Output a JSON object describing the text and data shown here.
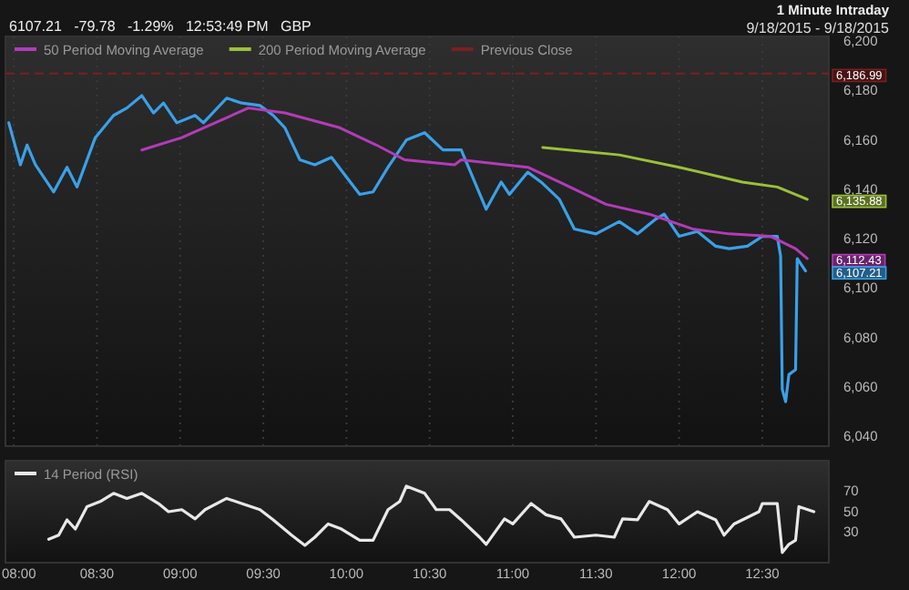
{
  "chart_data": [
    {
      "type": "line",
      "title": "1 Minute Intraday",
      "subtitle": "9/18/2015 - 9/18/2015",
      "annotations": [
        "6107.21   -79.78   -1.29%   12:53:49 PM   GBP",
        "6,186.99",
        "6,135.88",
        "6,112.43",
        "6,107.21"
      ],
      "xlim": [
        7.95,
        12.9
      ],
      "xticks": [
        8,
        8.5,
        9,
        9.5,
        10,
        10.5,
        11,
        11.5,
        12,
        12.5
      ],
      "ylim": [
        6036,
        6202
      ],
      "yticks": [
        {
          "value": 6040,
          "label": "6,040"
        },
        {
          "value": 6060,
          "label": "6,060"
        },
        {
          "value": 6080,
          "label": "6,080"
        },
        {
          "value": 6100,
          "label": "6,100"
        },
        {
          "value": 6120,
          "label": "6,120"
        },
        {
          "value": 6140,
          "label": "6,140"
        },
        {
          "value": 6160,
          "label": "6,160"
        },
        {
          "value": 6180,
          "label": "6,180"
        },
        {
          "value": 6200,
          "label": "6,200"
        }
      ],
      "tick_labels": "y",
      "grid": "x",
      "legend": "top left",
      "line_style": "solid",
      "ref_lines": [
        {
          "axis": "y",
          "value": 6186.99,
          "label": "Previous Close",
          "color": "#7a2020",
          "line_style": "dashed"
        }
      ],
      "series": [
        {
          "color": "#3aa0e8",
          "x": [
            7.97,
            8.04,
            8.08,
            8.13,
            8.24,
            8.32,
            8.38,
            8.49,
            8.6,
            8.68,
            8.77,
            8.84,
            8.9,
            8.98,
            9.09,
            9.14,
            9.28,
            9.37,
            9.48,
            9.56,
            9.63,
            9.72,
            9.81,
            9.91,
            10.0,
            10.08,
            10.16,
            10.25,
            10.36,
            10.47,
            10.58,
            10.69,
            10.74,
            10.84,
            10.93,
            10.98,
            11.09,
            11.17,
            11.28,
            11.37,
            11.5,
            11.64,
            11.75,
            11.86,
            11.91,
            12.0,
            12.11,
            12.22,
            12.3,
            12.41,
            12.5,
            12.59,
            12.61,
            12.62,
            12.64,
            12.66,
            12.7,
            12.71,
            12.76
          ],
          "values": [
            6167,
            6150,
            6158,
            6150,
            6139,
            6149,
            6141,
            6161,
            6170,
            6173,
            6178,
            6171,
            6175,
            6167,
            6170,
            6167,
            6177,
            6175,
            6174,
            6170,
            6165,
            6152,
            6150,
            6153,
            6145,
            6138,
            6139,
            6149,
            6160,
            6163,
            6156,
            6156,
            6148,
            6132,
            6143,
            6138,
            6147,
            6143,
            6136,
            6124,
            6122,
            6127,
            6122,
            6128,
            6130,
            6121,
            6123,
            6117,
            6116,
            6117,
            6121,
            6121,
            6113,
            6059,
            6054,
            6065,
            6067,
            6112,
            6107
          ]
        },
        {
          "name": "50 Period Moving Average",
          "color": "#b23cb8",
          "x": [
            8.77,
            9.01,
            9.41,
            9.63,
            9.96,
            10.18,
            10.35,
            10.65,
            10.69,
            11.09,
            11.28,
            11.56,
            11.82,
            12.08,
            12.3,
            12.55,
            12.7,
            12.77
          ],
          "values": [
            6156,
            6161,
            6173,
            6171,
            6165,
            6158,
            6152,
            6150,
            6152,
            6149,
            6143,
            6134,
            6130,
            6124,
            6122,
            6121,
            6116,
            6112
          ]
        },
        {
          "name": "200 Period Moving Average",
          "color": "#9cc03a",
          "x": [
            11.18,
            11.64,
            12.0,
            12.38,
            12.59,
            12.77
          ],
          "values": [
            6157,
            6154,
            6149,
            6143,
            6141,
            6136
          ]
        }
      ]
    },
    {
      "type": "line",
      "xlim": [
        7.95,
        12.9
      ],
      "xticks": [
        {
          "value": 8,
          "label": "08:00"
        },
        {
          "value": 8.5,
          "label": "08:30"
        },
        {
          "value": 9,
          "label": "09:00"
        },
        {
          "value": 9.5,
          "label": "09:30"
        },
        {
          "value": 10,
          "label": "10:00"
        },
        {
          "value": 10.5,
          "label": "10:30"
        },
        {
          "value": 11,
          "label": "11:00"
        },
        {
          "value": 11.5,
          "label": "11:30"
        },
        {
          "value": 12,
          "label": "12:00"
        },
        {
          "value": 12.5,
          "label": "12:30"
        }
      ],
      "ylim": [
        0,
        100
      ],
      "yticks": [
        30,
        50,
        70
      ],
      "legend": "top left",
      "line_style": "solid",
      "series": [
        {
          "name": "14 Period (RSI)",
          "color": "#e8e8e8",
          "x": [
            8.21,
            8.27,
            8.32,
            8.37,
            8.44,
            8.52,
            8.6,
            8.68,
            8.77,
            8.87,
            8.93,
            9.01,
            9.09,
            9.15,
            9.28,
            9.37,
            9.48,
            9.56,
            9.67,
            9.75,
            9.81,
            9.89,
            9.97,
            10.08,
            10.16,
            10.25,
            10.32,
            10.36,
            10.47,
            10.54,
            10.62,
            10.69,
            10.8,
            10.84,
            10.95,
            11.0,
            11.11,
            11.2,
            11.29,
            11.37,
            11.5,
            11.61,
            11.66,
            11.75,
            11.82,
            11.93,
            12.0,
            12.11,
            12.22,
            12.27,
            12.33,
            12.48,
            12.5,
            12.59,
            12.62,
            12.66,
            12.7,
            12.72,
            12.81
          ],
          "values": [
            23,
            27,
            42,
            33,
            55,
            60,
            68,
            63,
            68,
            58,
            50,
            52,
            43,
            52,
            63,
            58,
            52,
            42,
            27,
            17,
            25,
            38,
            33,
            22,
            22,
            52,
            60,
            75,
            68,
            52,
            52,
            42,
            25,
            18,
            43,
            38,
            58,
            47,
            43,
            25,
            27,
            25,
            43,
            42,
            60,
            52,
            38,
            50,
            42,
            27,
            38,
            50,
            58,
            58,
            10,
            18,
            22,
            55,
            50
          ]
        }
      ]
    }
  ]
}
